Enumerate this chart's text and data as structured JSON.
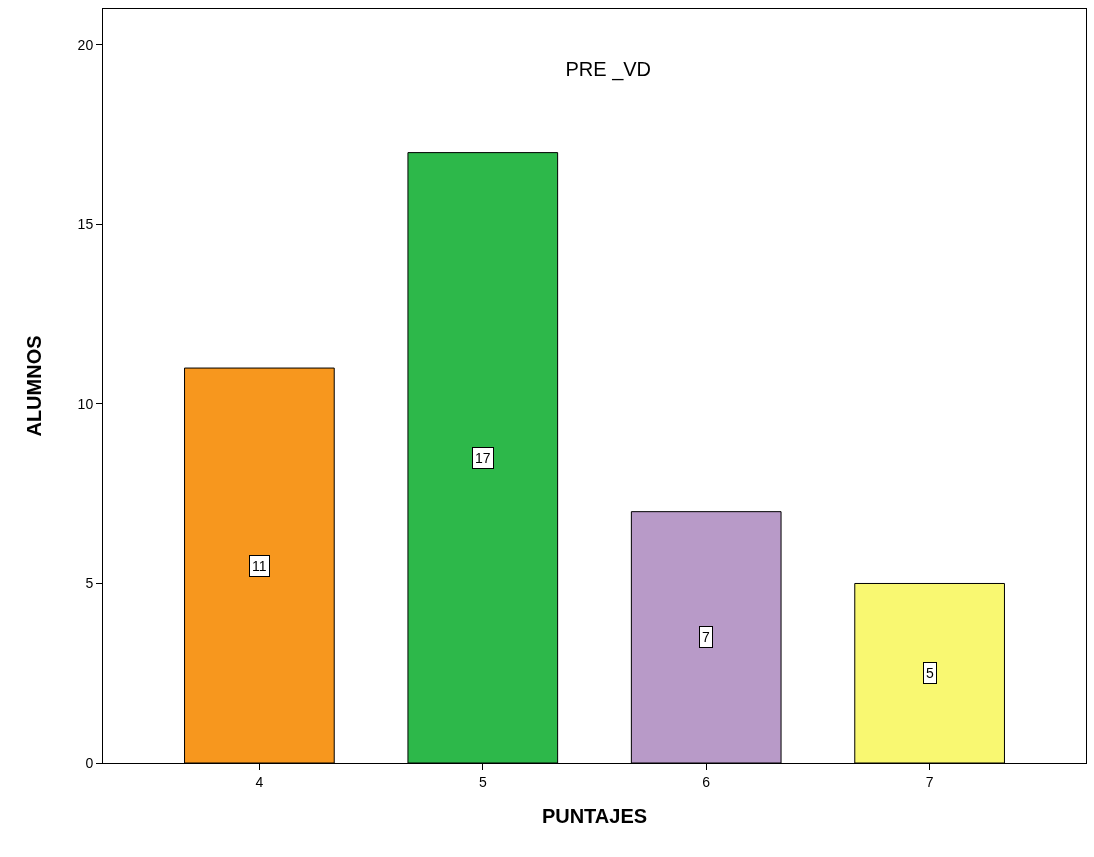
{
  "chart_data": {
    "type": "bar",
    "title": "PRE _VD",
    "xlabel": "PUNTAJES",
    "ylabel": "ALUMNOS",
    "categories": [
      "4",
      "5",
      "6",
      "7"
    ],
    "values": [
      11,
      17,
      7,
      5
    ],
    "colors": [
      "#f7971e",
      "#2db84a",
      "#b89ac8",
      "#f9f871"
    ],
    "ylim": [
      0,
      21
    ],
    "yticks": [
      0,
      5,
      10,
      15,
      20
    ],
    "grid": false,
    "data_labels": true
  }
}
